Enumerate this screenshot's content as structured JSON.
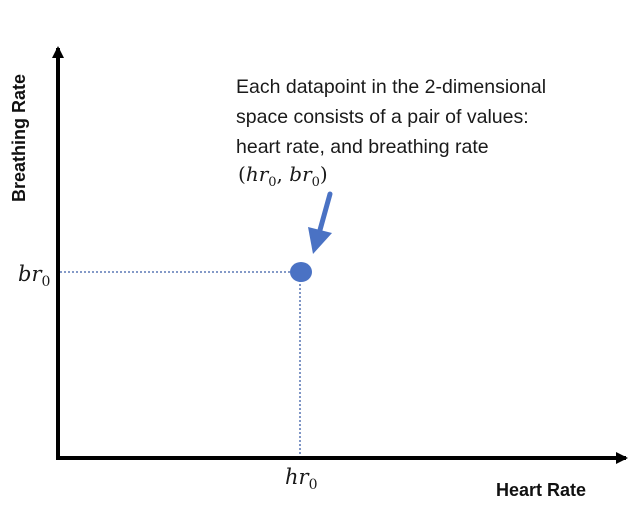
{
  "axes": {
    "x_label": "Heart Rate",
    "y_label": "Breathing Rate"
  },
  "point": {
    "x_var": "hr",
    "y_var": "br",
    "subscript": "0",
    "pair_open": "(",
    "pair_sep": ", ",
    "pair_close": ")"
  },
  "annotation": {
    "lines": [
      "Each datapoint in the 2-dimensional",
      "space consists of a pair of values:",
      "heart rate, and breathing rate"
    ]
  },
  "colors": {
    "point": "#4a72c4",
    "arrow": "#4a72c4",
    "guide": "#3b5ea8",
    "axis": "#000000"
  }
}
